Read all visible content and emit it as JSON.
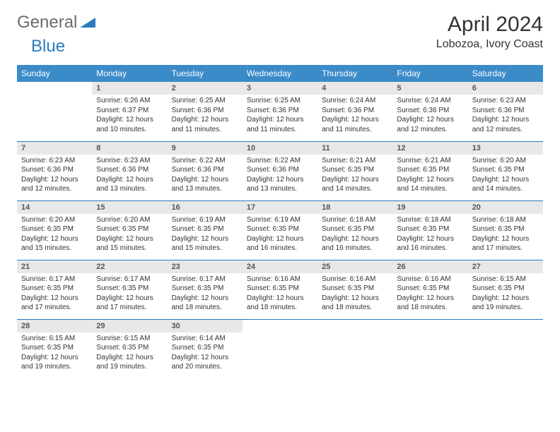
{
  "logo": {
    "text1": "General",
    "text2": "Blue"
  },
  "title": "April 2024",
  "location": "Lobozoa, Ivory Coast",
  "columns": [
    "Sunday",
    "Monday",
    "Tuesday",
    "Wednesday",
    "Thursday",
    "Friday",
    "Saturday"
  ],
  "colors": {
    "header_bg": "#3b8bc9",
    "header_text": "#ffffff",
    "daynum_bg": "#e8e8e8",
    "row_border": "#2b7bbf",
    "text": "#333333"
  },
  "typography": {
    "month_title_fontsize": 30,
    "location_fontsize": 16,
    "header_fontsize": 12,
    "daynum_fontsize": 11,
    "content_fontsize": 10
  },
  "weeks": [
    [
      {
        "day": "",
        "sunrise": "",
        "sunset": "",
        "daylight": ""
      },
      {
        "day": "1",
        "sunrise": "Sunrise: 6:26 AM",
        "sunset": "Sunset: 6:37 PM",
        "daylight": "Daylight: 12 hours and 10 minutes."
      },
      {
        "day": "2",
        "sunrise": "Sunrise: 6:25 AM",
        "sunset": "Sunset: 6:36 PM",
        "daylight": "Daylight: 12 hours and 11 minutes."
      },
      {
        "day": "3",
        "sunrise": "Sunrise: 6:25 AM",
        "sunset": "Sunset: 6:36 PM",
        "daylight": "Daylight: 12 hours and 11 minutes."
      },
      {
        "day": "4",
        "sunrise": "Sunrise: 6:24 AM",
        "sunset": "Sunset: 6:36 PM",
        "daylight": "Daylight: 12 hours and 11 minutes."
      },
      {
        "day": "5",
        "sunrise": "Sunrise: 6:24 AM",
        "sunset": "Sunset: 6:36 PM",
        "daylight": "Daylight: 12 hours and 12 minutes."
      },
      {
        "day": "6",
        "sunrise": "Sunrise: 6:23 AM",
        "sunset": "Sunset: 6:36 PM",
        "daylight": "Daylight: 12 hours and 12 minutes."
      }
    ],
    [
      {
        "day": "7",
        "sunrise": "Sunrise: 6:23 AM",
        "sunset": "Sunset: 6:36 PM",
        "daylight": "Daylight: 12 hours and 12 minutes."
      },
      {
        "day": "8",
        "sunrise": "Sunrise: 6:23 AM",
        "sunset": "Sunset: 6:36 PM",
        "daylight": "Daylight: 12 hours and 13 minutes."
      },
      {
        "day": "9",
        "sunrise": "Sunrise: 6:22 AM",
        "sunset": "Sunset: 6:36 PM",
        "daylight": "Daylight: 12 hours and 13 minutes."
      },
      {
        "day": "10",
        "sunrise": "Sunrise: 6:22 AM",
        "sunset": "Sunset: 6:36 PM",
        "daylight": "Daylight: 12 hours and 13 minutes."
      },
      {
        "day": "11",
        "sunrise": "Sunrise: 6:21 AM",
        "sunset": "Sunset: 6:35 PM",
        "daylight": "Daylight: 12 hours and 14 minutes."
      },
      {
        "day": "12",
        "sunrise": "Sunrise: 6:21 AM",
        "sunset": "Sunset: 6:35 PM",
        "daylight": "Daylight: 12 hours and 14 minutes."
      },
      {
        "day": "13",
        "sunrise": "Sunrise: 6:20 AM",
        "sunset": "Sunset: 6:35 PM",
        "daylight": "Daylight: 12 hours and 14 minutes."
      }
    ],
    [
      {
        "day": "14",
        "sunrise": "Sunrise: 6:20 AM",
        "sunset": "Sunset: 6:35 PM",
        "daylight": "Daylight: 12 hours and 15 minutes."
      },
      {
        "day": "15",
        "sunrise": "Sunrise: 6:20 AM",
        "sunset": "Sunset: 6:35 PM",
        "daylight": "Daylight: 12 hours and 15 minutes."
      },
      {
        "day": "16",
        "sunrise": "Sunrise: 6:19 AM",
        "sunset": "Sunset: 6:35 PM",
        "daylight": "Daylight: 12 hours and 15 minutes."
      },
      {
        "day": "17",
        "sunrise": "Sunrise: 6:19 AM",
        "sunset": "Sunset: 6:35 PM",
        "daylight": "Daylight: 12 hours and 16 minutes."
      },
      {
        "day": "18",
        "sunrise": "Sunrise: 6:18 AM",
        "sunset": "Sunset: 6:35 PM",
        "daylight": "Daylight: 12 hours and 16 minutes."
      },
      {
        "day": "19",
        "sunrise": "Sunrise: 6:18 AM",
        "sunset": "Sunset: 6:35 PM",
        "daylight": "Daylight: 12 hours and 16 minutes."
      },
      {
        "day": "20",
        "sunrise": "Sunrise: 6:18 AM",
        "sunset": "Sunset: 6:35 PM",
        "daylight": "Daylight: 12 hours and 17 minutes."
      }
    ],
    [
      {
        "day": "21",
        "sunrise": "Sunrise: 6:17 AM",
        "sunset": "Sunset: 6:35 PM",
        "daylight": "Daylight: 12 hours and 17 minutes."
      },
      {
        "day": "22",
        "sunrise": "Sunrise: 6:17 AM",
        "sunset": "Sunset: 6:35 PM",
        "daylight": "Daylight: 12 hours and 17 minutes."
      },
      {
        "day": "23",
        "sunrise": "Sunrise: 6:17 AM",
        "sunset": "Sunset: 6:35 PM",
        "daylight": "Daylight: 12 hours and 18 minutes."
      },
      {
        "day": "24",
        "sunrise": "Sunrise: 6:16 AM",
        "sunset": "Sunset: 6:35 PM",
        "daylight": "Daylight: 12 hours and 18 minutes."
      },
      {
        "day": "25",
        "sunrise": "Sunrise: 6:16 AM",
        "sunset": "Sunset: 6:35 PM",
        "daylight": "Daylight: 12 hours and 18 minutes."
      },
      {
        "day": "26",
        "sunrise": "Sunrise: 6:16 AM",
        "sunset": "Sunset: 6:35 PM",
        "daylight": "Daylight: 12 hours and 18 minutes."
      },
      {
        "day": "27",
        "sunrise": "Sunrise: 6:15 AM",
        "sunset": "Sunset: 6:35 PM",
        "daylight": "Daylight: 12 hours and 19 minutes."
      }
    ],
    [
      {
        "day": "28",
        "sunrise": "Sunrise: 6:15 AM",
        "sunset": "Sunset: 6:35 PM",
        "daylight": "Daylight: 12 hours and 19 minutes."
      },
      {
        "day": "29",
        "sunrise": "Sunrise: 6:15 AM",
        "sunset": "Sunset: 6:35 PM",
        "daylight": "Daylight: 12 hours and 19 minutes."
      },
      {
        "day": "30",
        "sunrise": "Sunrise: 6:14 AM",
        "sunset": "Sunset: 6:35 PM",
        "daylight": "Daylight: 12 hours and 20 minutes."
      },
      {
        "day": "",
        "sunrise": "",
        "sunset": "",
        "daylight": ""
      },
      {
        "day": "",
        "sunrise": "",
        "sunset": "",
        "daylight": ""
      },
      {
        "day": "",
        "sunrise": "",
        "sunset": "",
        "daylight": ""
      },
      {
        "day": "",
        "sunrise": "",
        "sunset": "",
        "daylight": ""
      }
    ]
  ]
}
